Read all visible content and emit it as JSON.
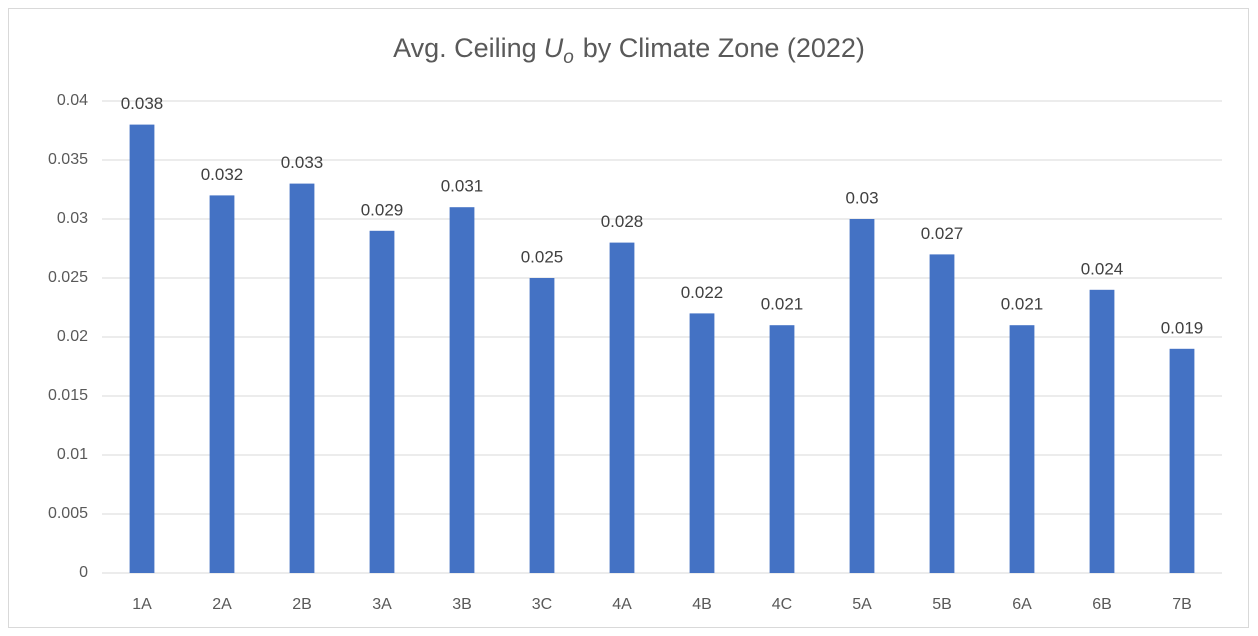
{
  "chart_data": {
    "type": "bar",
    "title": [
      "Avg. Ceiling",
      "U",
      "o",
      "by Climate Zone (2022)"
    ],
    "categories": [
      "1A",
      "2A",
      "2B",
      "3A",
      "3B",
      "3C",
      "4A",
      "4B",
      "4C",
      "5A",
      "5B",
      "6A",
      "6B",
      "7B"
    ],
    "values": [
      0.038,
      0.032,
      0.033,
      0.029,
      0.031,
      0.025,
      0.028,
      0.022,
      0.021,
      0.03,
      0.027,
      0.021,
      0.024,
      0.019
    ],
    "color": "#4472c4",
    "ylim": [
      0,
      0.04
    ],
    "yticks": [
      0,
      0.005,
      0.01,
      0.015,
      0.02,
      0.025,
      0.03,
      0.035,
      0.04
    ],
    "grid": true
  }
}
